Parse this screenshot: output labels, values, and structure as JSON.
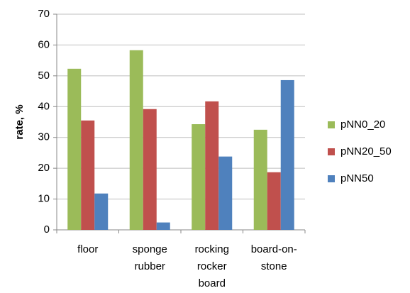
{
  "chart_data": {
    "type": "bar",
    "y_label": "rate, %",
    "categories": [
      [
        "floor"
      ],
      [
        "sponge",
        "rubber"
      ],
      [
        "rocking",
        "rocker",
        "board"
      ],
      [
        "board-on-",
        "stone"
      ]
    ],
    "series": [
      {
        "name": "pNN0_20",
        "color": "#9bbb59",
        "values": [
          52.3,
          58.3,
          34.3,
          32.5
        ]
      },
      {
        "name": "pNN20_50",
        "color": "#c0504d",
        "values": [
          35.5,
          39.2,
          41.7,
          18.7
        ]
      },
      {
        "name": "pNN50",
        "color": "#4f81bd",
        "values": [
          11.8,
          2.4,
          23.8,
          48.6
        ]
      }
    ],
    "ylim": [
      0,
      70
    ],
    "yticks": [
      0,
      10,
      20,
      30,
      40,
      50,
      60,
      70
    ],
    "grid": true,
    "legend": "right"
  }
}
